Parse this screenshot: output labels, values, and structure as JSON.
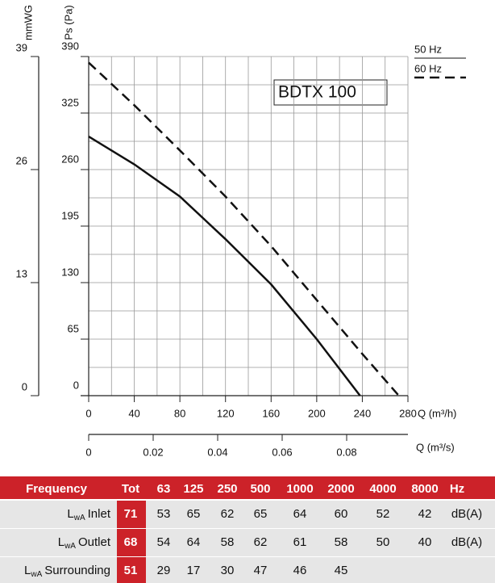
{
  "chart_data": {
    "type": "line",
    "title": "BDTX 100",
    "x_label": "Q (m³/h)",
    "y_label": "Ps (Pa)",
    "x2_label": "Q (m³/s)",
    "y2_label": "mmWG",
    "xlim": [
      0,
      280
    ],
    "xticks": [
      0,
      40,
      80,
      120,
      160,
      200,
      240,
      280
    ],
    "ylim": [
      0,
      390
    ],
    "yticks": [
      0,
      65,
      130,
      195,
      260,
      325,
      390
    ],
    "y2lim": [
      0,
      39
    ],
    "y2ticks": [
      0,
      13,
      26,
      39
    ],
    "x2lim": [
      0,
      0.099
    ],
    "x2ticks": [
      0,
      0.02,
      0.04,
      0.06,
      0.08
    ],
    "grid": true,
    "series": [
      {
        "name": "50 Hz",
        "color": "#111111",
        "dashed": false,
        "x": [
          0,
          40,
          80,
          120,
          160,
          200,
          238
        ],
        "values": [
          298,
          266,
          229,
          180,
          128,
          65,
          0
        ]
      },
      {
        "name": "60 Hz",
        "color": "#111111",
        "dashed": true,
        "x": [
          0,
          40,
          80,
          120,
          160,
          200,
          240,
          272
        ],
        "values": [
          383,
          334,
          282,
          229,
          172,
          110,
          48,
          0
        ]
      }
    ]
  },
  "table": {
    "header": [
      "Frequency",
      "Tot",
      "63",
      "125",
      "250",
      "500",
      "1000",
      "2000",
      "4000",
      "8000",
      "Hz"
    ],
    "rows": [
      {
        "label": "L",
        "sub": "wA",
        "name": "Inlet",
        "tot": 71,
        "values": [
          53,
          65,
          62,
          65,
          64,
          60,
          52,
          42
        ],
        "unit": "dB(A)"
      },
      {
        "label": "L",
        "sub": "wA",
        "name": "Outlet",
        "tot": 68,
        "values": [
          54,
          64,
          58,
          62,
          61,
          58,
          50,
          40
        ],
        "unit": "dB(A)"
      },
      {
        "label": "L",
        "sub": "wA",
        "name": "Surrounding",
        "tot": 51,
        "values": [
          29,
          17,
          30,
          47,
          46,
          45,
          null,
          null
        ],
        "unit": null
      }
    ]
  }
}
